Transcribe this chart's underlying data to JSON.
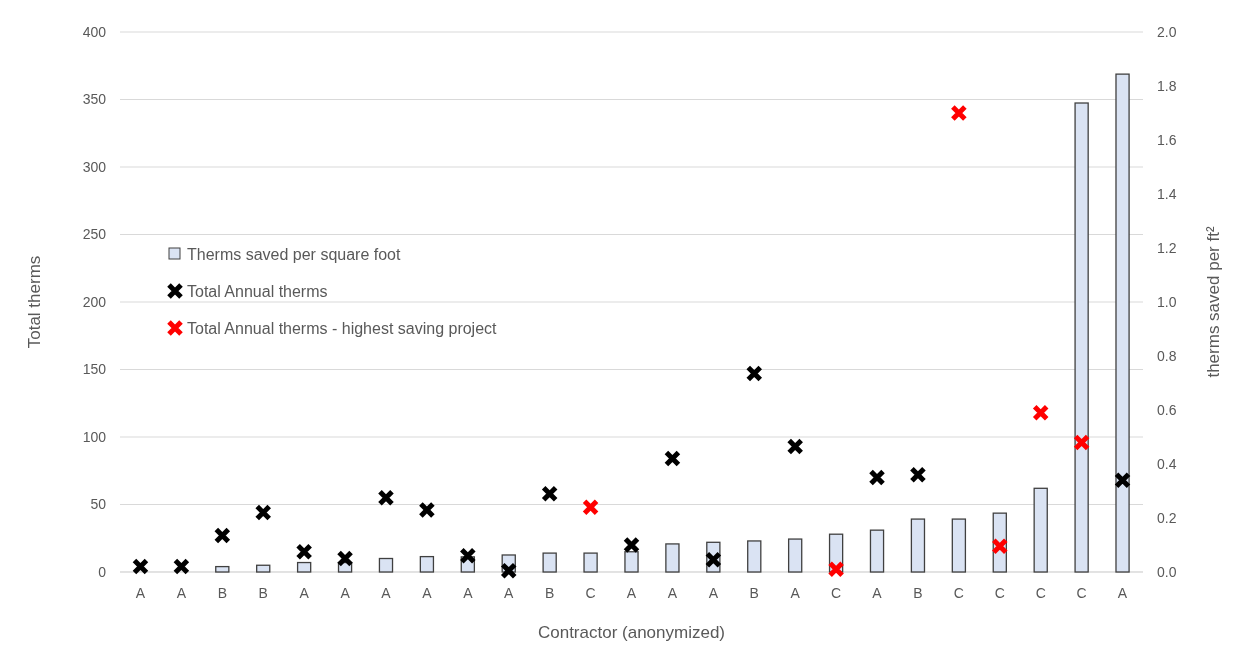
{
  "chart_data": {
    "type": "bar",
    "xlabel": "Contractor (anonymized)",
    "ylabel": "Total therms",
    "y2label": "therms saved per ft²",
    "categories": [
      "A",
      "A",
      "B",
      "B",
      "A",
      "A",
      "A",
      "A",
      "A",
      "A",
      "B",
      "C",
      "A",
      "A",
      "A",
      "B",
      "A",
      "C",
      "A",
      "B",
      "C",
      "C",
      "C",
      "C",
      "A"
    ],
    "series": [
      {
        "name": "Therms saved per square foot",
        "axis": "y2",
        "color": "#dae3f3",
        "values": [
          0,
          0,
          0.02,
          0.025,
          0.035,
          0.035,
          0.05,
          0.057,
          0.056,
          0.063,
          0.07,
          0.07,
          0.075,
          0.104,
          0.11,
          0.115,
          0.122,
          0.14,
          0.155,
          0.196,
          0.196,
          0.218,
          0.31,
          1.737,
          1.844
        ]
      },
      {
        "name": "Total Annual therms",
        "type": "scatter",
        "color": "#000000",
        "marker": "cross",
        "values": [
          4,
          4,
          27,
          44,
          15,
          10,
          55,
          46,
          12,
          1,
          58,
          null,
          20,
          84,
          9,
          147,
          93,
          null,
          70,
          72,
          null,
          null,
          null,
          null,
          68
        ]
      },
      {
        "name": "Total Annual therms - highest saving project",
        "type": "scatter",
        "color": "#ff0000",
        "marker": "cross",
        "values": [
          null,
          null,
          null,
          null,
          null,
          null,
          null,
          null,
          null,
          null,
          null,
          48,
          null,
          null,
          null,
          null,
          null,
          2,
          null,
          null,
          340,
          19,
          118,
          96,
          null
        ]
      }
    ],
    "ylim": [
      0,
      400
    ],
    "yticks": [
      0,
      50,
      100,
      150,
      200,
      250,
      300,
      350,
      400
    ],
    "y2lim": [
      0,
      2
    ],
    "y2ticks": [
      {
        "value": 0,
        "label": "0.0"
      },
      {
        "value": 0.2,
        "label": "0.2"
      },
      {
        "value": 0.4,
        "label": "0.4"
      },
      {
        "value": 0.6,
        "label": "0.6"
      },
      {
        "value": 0.8,
        "label": "0.8"
      },
      {
        "value": 1,
        "label": "1.0"
      },
      {
        "value": 1.2,
        "label": "1.2"
      },
      {
        "value": 1.4,
        "label": "1.4"
      },
      {
        "value": 1.6,
        "label": "1.6"
      },
      {
        "value": 1.8,
        "label": "1.8"
      },
      {
        "value": 2,
        "label": "2.0"
      }
    ],
    "grid": "y",
    "legend": "left"
  }
}
